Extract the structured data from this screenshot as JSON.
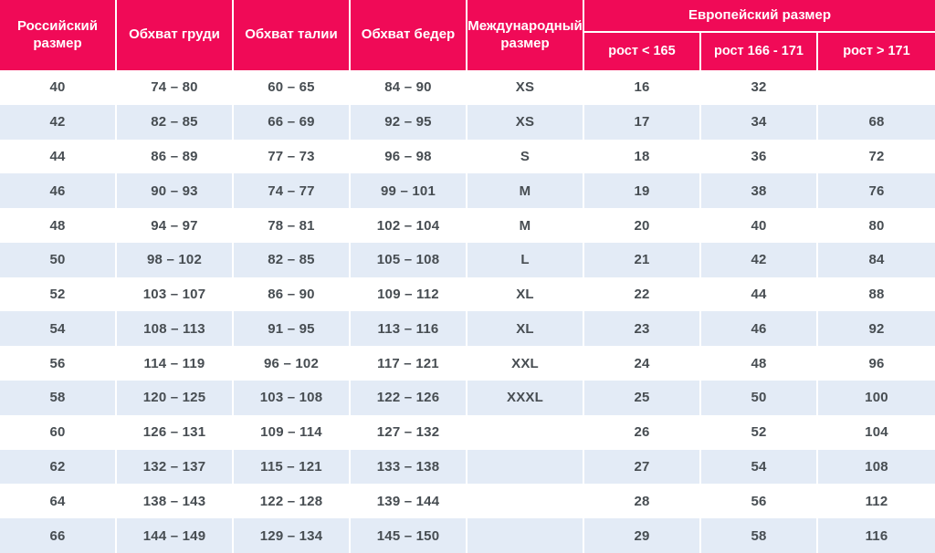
{
  "colors": {
    "header_bg": "#F00A57",
    "header_text": "#FFFFFF",
    "row_bg": "#FFFFFF",
    "row_alt_bg": "#E3EBF6",
    "cell_text": "#474D52",
    "separator": "#FFFFFF"
  },
  "table": {
    "header": {
      "russian_size": "Российский размер",
      "chest": "Обхват груди",
      "waist": "Обхват талии",
      "hips": "Обхват бедер",
      "international_size": "Международный размер",
      "european_size_group": "Европейский размер",
      "height_lt_165": "рост < 165",
      "height_166_171": "рост 166 - 171",
      "height_gt_171": "рост > 171"
    },
    "rows": [
      [
        "40",
        "74 – 80",
        "60 – 65",
        "84 – 90",
        "XS",
        "16",
        "32",
        ""
      ],
      [
        "42",
        "82 – 85",
        "66 – 69",
        "92 – 95",
        "XS",
        "17",
        "34",
        "68"
      ],
      [
        "44",
        "86 – 89",
        "77 – 73",
        "96 – 98",
        "S",
        "18",
        "36",
        "72"
      ],
      [
        "46",
        "90 – 93",
        "74 – 77",
        "99 – 101",
        "M",
        "19",
        "38",
        "76"
      ],
      [
        "48",
        "94 – 97",
        "78 – 81",
        "102 – 104",
        "M",
        "20",
        "40",
        "80"
      ],
      [
        "50",
        "98 – 102",
        "82 – 85",
        "105 – 108",
        "L",
        "21",
        "42",
        "84"
      ],
      [
        "52",
        "103 – 107",
        "86 – 90",
        "109 – 112",
        "XL",
        "22",
        "44",
        "88"
      ],
      [
        "54",
        "108 – 113",
        "91 – 95",
        "113 – 116",
        "XL",
        "23",
        "46",
        "92"
      ],
      [
        "56",
        "114 – 119",
        "96 – 102",
        "117 – 121",
        "XXL",
        "24",
        "48",
        "96"
      ],
      [
        "58",
        "120 – 125",
        "103 – 108",
        "122 – 126",
        "XXXL",
        "25",
        "50",
        "100"
      ],
      [
        "60",
        "126 – 131",
        "109 – 114",
        "127 – 132",
        "",
        "26",
        "52",
        "104"
      ],
      [
        "62",
        "132 – 137",
        "115 – 121",
        "133 – 138",
        "",
        "27",
        "54",
        "108"
      ],
      [
        "64",
        "138 – 143",
        "122 – 128",
        "139 – 144",
        "",
        "28",
        "56",
        "112"
      ],
      [
        "66",
        "144 – 149",
        "129 – 134",
        "145 – 150",
        "",
        "29",
        "58",
        "116"
      ]
    ]
  }
}
